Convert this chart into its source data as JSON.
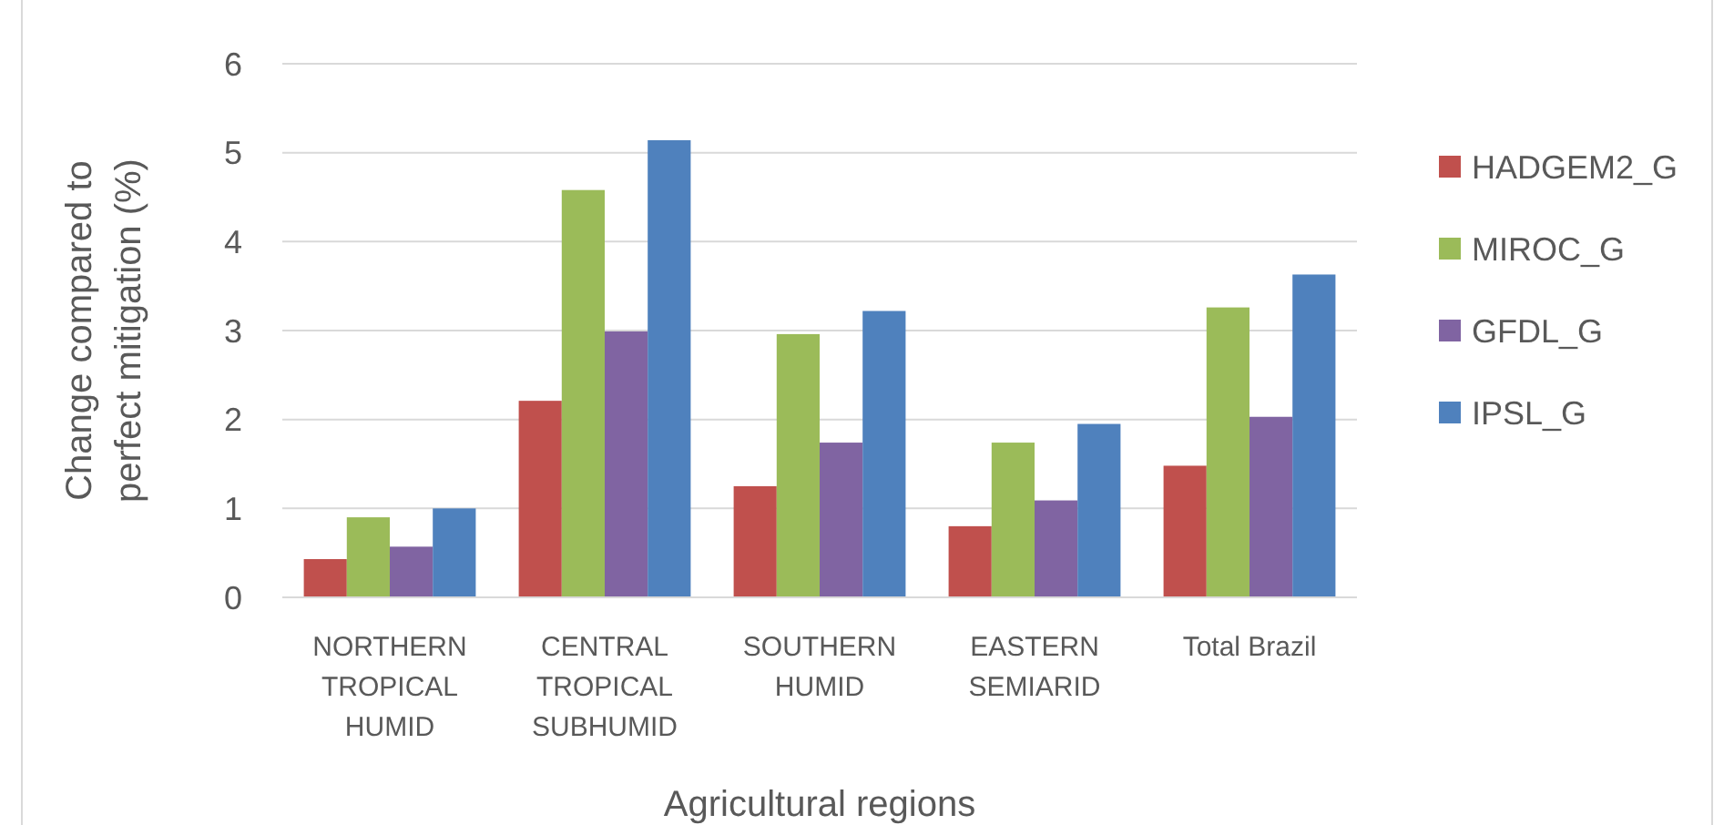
{
  "chart_data": {
    "type": "bar",
    "xlabel": "Agricultural regions",
    "ylabel": "Change compared to perfect mitigation (%)",
    "categories": [
      "NORTHERN TROPICAL HUMID",
      "CENTRAL TROPICAL SUBHUMID",
      "SOUTHERN HUMID",
      "EASTERN SEMIARID",
      "Total Brazil"
    ],
    "series": [
      {
        "name": "HADGEM2_G",
        "color": "#c0504d",
        "values": [
          0.43,
          2.21,
          1.25,
          0.8,
          1.48
        ]
      },
      {
        "name": "MIROC_G",
        "color": "#9bbb59",
        "values": [
          0.9,
          4.58,
          2.96,
          1.74,
          3.26
        ]
      },
      {
        "name": "GFDL_G",
        "color": "#8064a2",
        "values": [
          0.57,
          2.99,
          1.74,
          1.09,
          2.03
        ]
      },
      {
        "name": "IPSL_G",
        "color": "#4f81bd",
        "values": [
          1.0,
          5.14,
          3.22,
          1.95,
          3.63
        ]
      }
    ],
    "ylim": [
      0,
      6
    ],
    "yticks": [
      0,
      1,
      2,
      3,
      4,
      5,
      6
    ],
    "grid": "y",
    "legend": "right"
  }
}
